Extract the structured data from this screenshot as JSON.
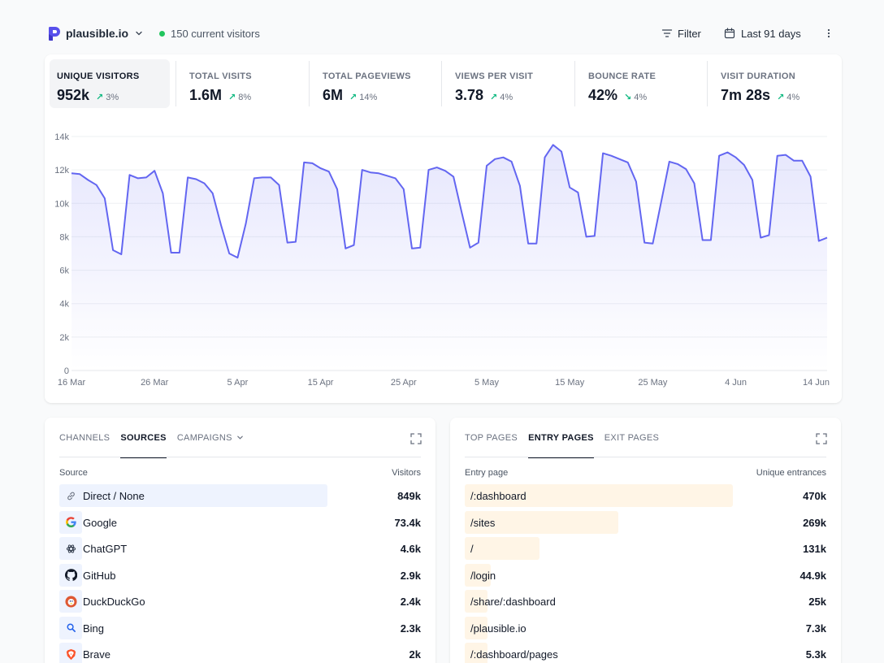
{
  "header": {
    "site_name": "plausible.io",
    "current_visitors": "150 current visitors",
    "filter_label": "Filter",
    "period_label": "Last 91 days"
  },
  "metrics": [
    {
      "label": "UNIQUE VISITORS",
      "value": "952k",
      "change": "3%",
      "direction": "up",
      "active": true
    },
    {
      "label": "TOTAL VISITS",
      "value": "1.6M",
      "change": "8%",
      "direction": "up",
      "active": false
    },
    {
      "label": "TOTAL PAGEVIEWS",
      "value": "6M",
      "change": "14%",
      "direction": "up",
      "active": false
    },
    {
      "label": "VIEWS PER VISIT",
      "value": "3.78",
      "change": "4%",
      "direction": "up",
      "active": false
    },
    {
      "label": "BOUNCE RATE",
      "value": "42%",
      "change": "4%",
      "direction": "down",
      "active": false
    },
    {
      "label": "VISIT DURATION",
      "value": "7m 28s",
      "change": "4%",
      "direction": "up",
      "active": false
    }
  ],
  "chart_data": {
    "type": "area",
    "title": "",
    "xlabel": "",
    "ylabel": "",
    "ylim": [
      0,
      14000
    ],
    "y_ticks": [
      "0",
      "2k",
      "4k",
      "6k",
      "8k",
      "10k",
      "12k",
      "14k"
    ],
    "x_ticks": [
      "16 Mar",
      "26 Mar",
      "5 Apr",
      "15 Apr",
      "25 Apr",
      "5 May",
      "15 May",
      "25 May",
      "4 Jun",
      "14 Jun"
    ],
    "grid": true,
    "colors": {
      "line": "#6366f1",
      "fill": "#6366f1"
    },
    "series": [
      {
        "values": [
          11800,
          11750,
          11400,
          11100,
          10300,
          7200,
          6950,
          11700,
          11500,
          11550,
          11950,
          10600,
          7050,
          7050,
          11550,
          11450,
          11200,
          10600,
          8700,
          7000,
          6750,
          8800,
          11500,
          11550,
          11550,
          11100,
          7650,
          7700,
          12450,
          12400,
          12100,
          11900,
          10850,
          7300,
          7500,
          12000,
          11850,
          11800,
          11650,
          11500,
          10850,
          7300,
          7350,
          12000,
          12150,
          11950,
          11600,
          9450,
          7350,
          7650,
          12250,
          12650,
          12750,
          12500,
          11050,
          7600,
          7600,
          12750,
          13500,
          13100,
          10950,
          10650,
          8000,
          8050,
          13000,
          12850,
          12650,
          12450,
          11300,
          7650,
          7600,
          10050,
          12500,
          12350,
          12050,
          11200,
          7800,
          7800,
          12850,
          13050,
          12750,
          12300,
          11400,
          7950,
          8100,
          12850,
          12900,
          12550,
          12550,
          11600,
          7750,
          7950
        ]
      }
    ]
  },
  "sources_panel": {
    "tabs": [
      "CHANNELS",
      "SOURCES",
      "CAMPAIGNS"
    ],
    "active_tab": "SOURCES",
    "col_left": "Source",
    "col_right": "Visitors",
    "rows": [
      {
        "label": "Direct / None",
        "value": "849k",
        "fraction": 1.0,
        "icon": "link-icon"
      },
      {
        "label": "Google",
        "value": "73.4k",
        "fraction": 0.086,
        "icon": "google-icon"
      },
      {
        "label": "ChatGPT",
        "value": "4.6k",
        "fraction": 0.005,
        "icon": "chatgpt-icon"
      },
      {
        "label": "GitHub",
        "value": "2.9k",
        "fraction": 0.003,
        "icon": "github-icon"
      },
      {
        "label": "DuckDuckGo",
        "value": "2.4k",
        "fraction": 0.003,
        "icon": "duckduckgo-icon"
      },
      {
        "label": "Bing",
        "value": "2.3k",
        "fraction": 0.003,
        "icon": "bing-icon"
      },
      {
        "label": "Brave",
        "value": "2k",
        "fraction": 0.002,
        "icon": "brave-icon"
      }
    ]
  },
  "pages_panel": {
    "tabs": [
      "TOP PAGES",
      "ENTRY PAGES",
      "EXIT PAGES"
    ],
    "active_tab": "ENTRY PAGES",
    "col_left": "Entry page",
    "col_right": "Unique entrances",
    "rows": [
      {
        "label": "/:dashboard",
        "value": "470k",
        "fraction": 1.0
      },
      {
        "label": "/sites",
        "value": "269k",
        "fraction": 0.572
      },
      {
        "label": "/",
        "value": "131k",
        "fraction": 0.279
      },
      {
        "label": "/login",
        "value": "44.9k",
        "fraction": 0.096
      },
      {
        "label": "/share/:dashboard",
        "value": "25k",
        "fraction": 0.053
      },
      {
        "label": "/plausible.io",
        "value": "7.3k",
        "fraction": 0.016
      },
      {
        "label": "/:dashboard/pages",
        "value": "5.3k",
        "fraction": 0.011
      }
    ]
  }
}
